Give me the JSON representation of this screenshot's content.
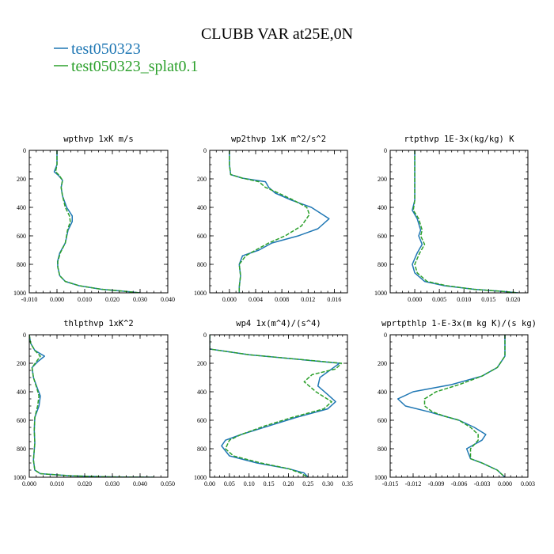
{
  "title": "CLUBB VAR at25E,0N",
  "legend": [
    {
      "name": "test050323",
      "color": "#1f77b4"
    },
    {
      "name": "test050323_splat0.1",
      "color": "#2ca02c"
    }
  ],
  "chart_data": [
    {
      "type": "line",
      "title": "wpthvp  1xK m/s",
      "xlim": [
        -0.01,
        0.04
      ],
      "ylim": [
        0,
        1000
      ],
      "y_inverted": true,
      "xticks": [
        -0.01,
        0.0,
        0.01,
        0.02,
        0.03,
        0.04
      ],
      "xtick_labels": [
        "-0.010",
        "0.000",
        "0.010",
        "0.020",
        "0.030",
        "0.040"
      ],
      "yticks": [
        0,
        200,
        400,
        600,
        800,
        1000
      ],
      "ytick_labels": [
        "0",
        "200",
        "400",
        "600",
        "800",
        "1000"
      ],
      "series": [
        {
          "x": [
            0.0,
            0.0,
            -0.001,
            0.0005,
            0.002,
            0.0015,
            0.002,
            0.0035,
            0.0055,
            0.0055,
            0.004,
            0.003,
            0.001,
            0.0002,
            0.0003,
            0.001,
            0.003,
            0.008,
            0.016,
            0.025,
            0.03
          ],
          "y": [
            0,
            100,
            150,
            175,
            210,
            260,
            320,
            400,
            460,
            500,
            560,
            650,
            720,
            780,
            820,
            880,
            920,
            950,
            975,
            990,
            1000
          ]
        },
        {
          "x": [
            0.0,
            0.0,
            -0.0005,
            0.0008,
            0.002,
            0.0015,
            0.002,
            0.003,
            0.0045,
            0.0048,
            0.0038,
            0.003,
            0.0012,
            0.0003,
            0.0003,
            0.001,
            0.003,
            0.008,
            0.016,
            0.025,
            0.03
          ],
          "y": [
            0,
            100,
            150,
            175,
            210,
            260,
            320,
            400,
            460,
            500,
            560,
            650,
            720,
            780,
            820,
            880,
            920,
            950,
            975,
            990,
            1000
          ]
        }
      ]
    },
    {
      "type": "line",
      "title": "wp2thvp  1xK m^2/s^2",
      "xlim": [
        -0.003,
        0.018
      ],
      "ylim": [
        0,
        1000
      ],
      "y_inverted": true,
      "xticks": [
        0.0,
        0.004,
        0.008,
        0.012,
        0.016
      ],
      "xtick_labels": [
        "0.000",
        "0.004",
        "0.008",
        "0.012",
        "0.016"
      ],
      "yticks": [
        0,
        200,
        400,
        600,
        800,
        1000
      ],
      "ytick_labels": [
        "0",
        "200",
        "400",
        "600",
        "800",
        "1000"
      ],
      "series": [
        {
          "x": [
            0.0,
            0.0,
            0.0002,
            0.002,
            0.0055,
            0.006,
            0.007,
            0.0095,
            0.0125,
            0.0152,
            0.0135,
            0.0105,
            0.0065,
            0.0045,
            0.002,
            0.0015,
            0.0017,
            0.0015,
            0.0015
          ],
          "y": [
            0,
            100,
            170,
            195,
            220,
            260,
            300,
            350,
            400,
            480,
            550,
            600,
            650,
            700,
            740,
            800,
            880,
            960,
            1000
          ]
        },
        {
          "x": [
            0.0,
            0.0,
            0.0002,
            0.002,
            0.0045,
            0.0055,
            0.0075,
            0.0098,
            0.0118,
            0.0122,
            0.011,
            0.0085,
            0.006,
            0.004,
            0.0025,
            0.0015,
            0.0017,
            0.0015,
            0.0015
          ],
          "y": [
            0,
            100,
            170,
            195,
            220,
            260,
            300,
            350,
            400,
            450,
            530,
            600,
            650,
            700,
            740,
            800,
            880,
            960,
            1000
          ]
        }
      ]
    },
    {
      "type": "line",
      "title": "rtpthvp  1E-3x(kg/kg) K",
      "xlim": [
        -0.005,
        0.023
      ],
      "ylim": [
        0,
        1000
      ],
      "y_inverted": true,
      "xticks": [
        0.0,
        0.005,
        0.01,
        0.015,
        0.02
      ],
      "xtick_labels": [
        "0.000",
        "0.005",
        "0.010",
        "0.015",
        "0.020"
      ],
      "yticks": [
        0,
        200,
        400,
        600,
        800,
        1000
      ],
      "ytick_labels": [
        "0",
        "200",
        "400",
        "600",
        "800",
        "1000"
      ],
      "series": [
        {
          "x": [
            0.0,
            0.0,
            0.0,
            -0.0005,
            0.0005,
            0.0012,
            0.0008,
            0.0015,
            0.0005,
            -0.0005,
            0.0,
            0.002,
            0.006,
            0.012,
            0.018,
            0.021
          ],
          "y": [
            0,
            100,
            350,
            420,
            480,
            560,
            600,
            660,
            720,
            800,
            860,
            920,
            950,
            975,
            990,
            1000
          ]
        },
        {
          "x": [
            0.0,
            0.0,
            0.0,
            -0.0003,
            0.0008,
            0.0015,
            0.0012,
            0.002,
            0.001,
            0.0,
            0.0005,
            0.0025,
            0.0065,
            0.012,
            0.018,
            0.021
          ],
          "y": [
            0,
            100,
            350,
            420,
            480,
            560,
            600,
            660,
            720,
            800,
            860,
            920,
            950,
            975,
            990,
            1000
          ]
        }
      ]
    },
    {
      "type": "line",
      "title": "thlpthvp  1xK^2",
      "xlim": [
        0.0,
        0.05
      ],
      "ylim": [
        0,
        1000
      ],
      "y_inverted": true,
      "xticks": [
        0.0,
        0.01,
        0.02,
        0.03,
        0.04,
        0.05
      ],
      "xtick_labels": [
        "0.000",
        "0.010",
        "0.020",
        "0.030",
        "0.040",
        "0.050"
      ],
      "yticks": [
        0,
        200,
        400,
        600,
        800,
        1000
      ],
      "ytick_labels": [
        "0",
        "200",
        "400",
        "600",
        "800",
        "1000"
      ],
      "series": [
        {
          "x": [
            0.0,
            0.0005,
            0.002,
            0.0055,
            0.003,
            0.001,
            0.0015,
            0.003,
            0.004,
            0.0035,
            0.002,
            0.0018,
            0.002,
            0.0015,
            0.002,
            0.004,
            0.015,
            0.03,
            0.045
          ],
          "y": [
            0,
            60,
            110,
            150,
            190,
            230,
            300,
            380,
            430,
            500,
            580,
            670,
            760,
            880,
            950,
            975,
            990,
            998,
            1000
          ]
        },
        {
          "x": [
            0.0,
            0.0005,
            0.002,
            0.004,
            0.0025,
            0.001,
            0.0015,
            0.0028,
            0.0035,
            0.003,
            0.002,
            0.0018,
            0.002,
            0.0015,
            0.002,
            0.004,
            0.015,
            0.03,
            0.045
          ],
          "y": [
            0,
            60,
            110,
            150,
            190,
            230,
            300,
            380,
            430,
            500,
            580,
            670,
            760,
            880,
            950,
            975,
            990,
            998,
            1000
          ]
        }
      ]
    },
    {
      "type": "line",
      "title": "wp4  1x(m^4)/(s^4)",
      "xlim": [
        0.0,
        0.35
      ],
      "ylim": [
        0,
        1000
      ],
      "y_inverted": true,
      "xticks": [
        0.0,
        0.05,
        0.1,
        0.15,
        0.2,
        0.25,
        0.3,
        0.35
      ],
      "xtick_labels": [
        "0.00",
        "0.05",
        "0.10",
        "0.15",
        "0.20",
        "0.25",
        "0.30",
        "0.35"
      ],
      "yticks": [
        0,
        200,
        400,
        600,
        800,
        1000
      ],
      "ytick_labels": [
        "0",
        "200",
        "400",
        "600",
        "800",
        "1000"
      ],
      "series": [
        {
          "x": [
            0.0,
            0.0,
            0.1,
            0.33,
            0.31,
            0.28,
            0.275,
            0.3,
            0.32,
            0.3,
            0.22,
            0.15,
            0.08,
            0.04,
            0.03,
            0.05,
            0.12,
            0.2,
            0.24,
            0.25
          ],
          "y": [
            0,
            100,
            140,
            200,
            240,
            300,
            360,
            420,
            470,
            520,
            580,
            640,
            700,
            740,
            780,
            850,
            900,
            940,
            970,
            1000
          ]
        },
        {
          "x": [
            0.0,
            0.0,
            0.1,
            0.335,
            0.32,
            0.26,
            0.24,
            0.27,
            0.31,
            0.29,
            0.21,
            0.14,
            0.08,
            0.05,
            0.04,
            0.06,
            0.13,
            0.2,
            0.23,
            0.25
          ],
          "y": [
            0,
            100,
            140,
            200,
            240,
            280,
            330,
            400,
            470,
            520,
            580,
            640,
            700,
            740,
            800,
            850,
            900,
            940,
            970,
            1000
          ]
        }
      ]
    },
    {
      "type": "line",
      "title": "wprtpthlp  1-E-3x(m kg K)/(s kg)",
      "xlim": [
        -0.015,
        0.003
      ],
      "ylim": [
        0,
        1000
      ],
      "y_inverted": true,
      "xticks": [
        -0.015,
        -0.012,
        -0.009,
        -0.006,
        -0.003,
        0.0,
        0.003
      ],
      "xtick_labels": [
        "-0.015",
        "-0.012",
        "-0.009",
        "-0.006",
        "-0.003",
        "0.000",
        "0.003"
      ],
      "yticks": [
        0,
        200,
        400,
        600,
        800,
        1000
      ],
      "ytick_labels": [
        "0",
        "200",
        "400",
        "600",
        "800",
        "1000"
      ],
      "series": [
        {
          "x": [
            0.0,
            0.0,
            -0.001,
            -0.003,
            -0.007,
            -0.012,
            -0.014,
            -0.013,
            -0.01,
            -0.008,
            -0.006,
            -0.004,
            -0.0025,
            -0.003,
            -0.005,
            -0.0045,
            -0.003,
            -0.001,
            0.0
          ],
          "y": [
            0,
            150,
            230,
            290,
            350,
            400,
            450,
            500,
            540,
            570,
            600,
            650,
            700,
            740,
            800,
            870,
            900,
            950,
            1000
          ]
        },
        {
          "x": [
            0.0,
            0.0,
            -0.001,
            -0.003,
            -0.006,
            -0.009,
            -0.0105,
            -0.0105,
            -0.0095,
            -0.008,
            -0.006,
            -0.0045,
            -0.0035,
            -0.0035,
            -0.0045,
            -0.0045,
            -0.003,
            -0.001,
            0.0
          ],
          "y": [
            0,
            150,
            230,
            290,
            350,
            400,
            450,
            500,
            540,
            570,
            600,
            650,
            700,
            740,
            800,
            870,
            900,
            950,
            1000
          ]
        }
      ]
    }
  ]
}
